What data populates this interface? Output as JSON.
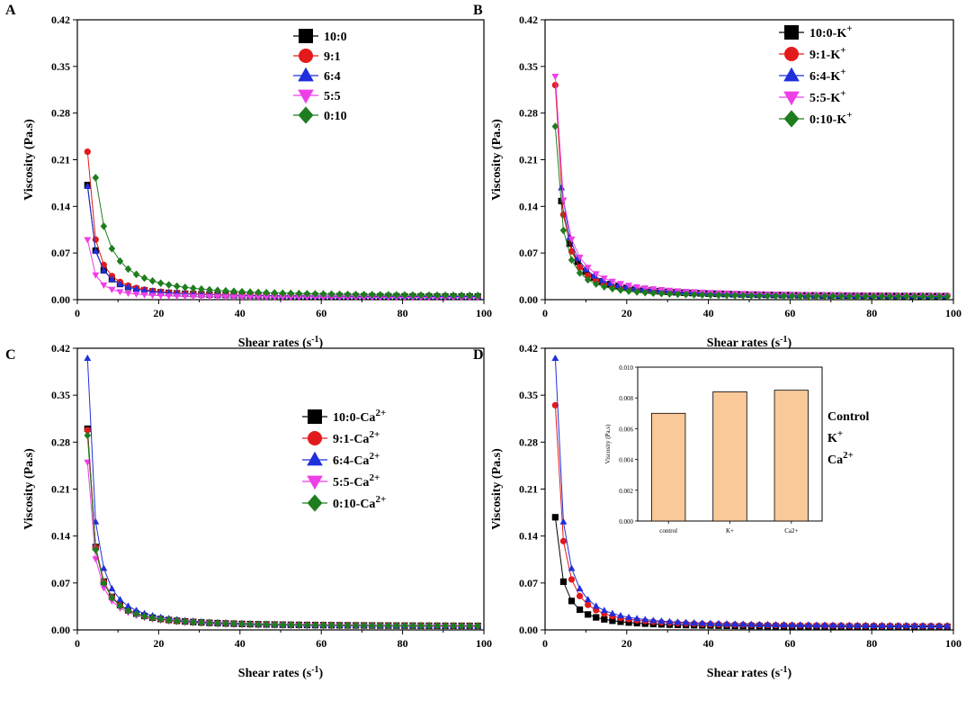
{
  "chart_data": [
    {
      "panel": "A",
      "type": "line",
      "xlabel": "Shear rates (s",
      "xlabel_sup": "-1",
      "xlabel_tail": ")",
      "ylabel": "Viscosity (Pa.s)",
      "xlim": [
        0,
        100
      ],
      "ylim": [
        0,
        0.42
      ],
      "xticks": [
        "0",
        "20",
        "40",
        "60",
        "80",
        "100"
      ],
      "yticks": [
        "0.00",
        "0.07",
        "0.14",
        "0.21",
        "0.28",
        "0.35",
        "0.42"
      ],
      "legend_position": "top-right",
      "series": [
        {
          "name": "10:0",
          "sup": "",
          "marker": "square",
          "color": "#000000",
          "start": 0.172,
          "floor": 0.004,
          "k": 0.5
        },
        {
          "name": "9:1",
          "sup": "",
          "marker": "circle",
          "color": "#e31a1c",
          "start": 0.222,
          "floor": 0.004,
          "k": 0.58
        },
        {
          "name": "6:4",
          "sup": "",
          "marker": "triangle-up",
          "color": "#1f2fdb",
          "start": 0.17,
          "floor": 0.004,
          "k": 0.5
        },
        {
          "name": "5:5",
          "sup": "",
          "marker": "triangle-down",
          "color": "#ee3ee8",
          "start": 0.09,
          "floor": 0.003,
          "k": 0.6
        },
        {
          "name": "0:10",
          "sup": "",
          "marker": "diamond",
          "color": "#1e7d1e",
          "start": 0.183,
          "floor": 0.004,
          "k": 0.42,
          "x0": 4.5
        }
      ]
    },
    {
      "panel": "B",
      "type": "line",
      "xlabel": "Shear rates (s",
      "xlabel_sup": "-1",
      "xlabel_tail": ")",
      "ylabel": "Viscosity (Pa.s)",
      "xlim": [
        0,
        100
      ],
      "ylim": [
        0,
        0.42
      ],
      "xticks": [
        "0",
        "20",
        "40",
        "60",
        "80",
        "100"
      ],
      "yticks": [
        "0.00",
        "0.07",
        "0.14",
        "0.21",
        "0.28",
        "0.35",
        "0.42"
      ],
      "legend_position": "top-right",
      "series": [
        {
          "name": "10:0-K",
          "sup": "+",
          "marker": "square",
          "color": "#000000",
          "start": 0.148,
          "floor": 0.004,
          "k": 0.45,
          "x0": 4
        },
        {
          "name": "9:1-K",
          "sup": "+",
          "marker": "circle",
          "color": "#e31a1c",
          "start": 0.322,
          "floor": 0.005,
          "k": 0.62
        },
        {
          "name": "6:4-K",
          "sup": "+",
          "marker": "triangle-up",
          "color": "#1f2fdb",
          "start": 0.168,
          "floor": 0.004,
          "k": 0.5,
          "x0": 4
        },
        {
          "name": "5:5-K",
          "sup": "+",
          "marker": "triangle-down",
          "color": "#ee3ee8",
          "start": 0.335,
          "floor": 0.004,
          "k": 0.4
        },
        {
          "name": "0:10-K",
          "sup": "+",
          "marker": "diamond",
          "color": "#1e7d1e",
          "start": 0.26,
          "floor": 0.004,
          "k": 0.6
        }
      ]
    },
    {
      "panel": "C",
      "type": "line",
      "xlabel": "Shear rates (s",
      "xlabel_sup": "-1",
      "xlabel_tail": ")",
      "ylabel": "Viscosity (Pa.s)",
      "xlim": [
        0,
        100
      ],
      "ylim": [
        0,
        0.42
      ],
      "xticks": [
        "0",
        "20",
        "40",
        "60",
        "80",
        "100"
      ],
      "yticks": [
        "0.00",
        "0.07",
        "0.14",
        "0.21",
        "0.28",
        "0.35",
        "0.42"
      ],
      "legend_position": "center-right",
      "series": [
        {
          "name": "10:0-Ca",
          "sup": "2+",
          "marker": "square",
          "color": "#000000",
          "start": 0.3,
          "floor": 0.005,
          "k": 0.55
        },
        {
          "name": "9:1-Ca",
          "sup": "2+",
          "marker": "circle",
          "color": "#e31a1c",
          "start": 0.298,
          "floor": 0.005,
          "k": 0.55
        },
        {
          "name": "6:4-Ca",
          "sup": "2+",
          "marker": "triangle-up",
          "color": "#1f2fdb",
          "start": 0.405,
          "floor": 0.005,
          "k": 0.6
        },
        {
          "name": "5:5-Ca",
          "sup": "2+",
          "marker": "triangle-down",
          "color": "#ee3ee8",
          "start": 0.25,
          "floor": 0.004,
          "k": 0.5
        },
        {
          "name": "0:10-Ca",
          "sup": "2+",
          "marker": "diamond",
          "color": "#1e7d1e",
          "start": 0.29,
          "floor": 0.005,
          "k": 0.55
        }
      ]
    },
    {
      "panel": "D",
      "type": "line",
      "xlabel": "Shear rates (s",
      "xlabel_sup": "-1",
      "xlabel_tail": ")",
      "ylabel": "Viscosity (Pa.s)",
      "xlim": [
        0,
        100
      ],
      "ylim": [
        0,
        0.42
      ],
      "xticks": [
        "0",
        "20",
        "40",
        "60",
        "80",
        "100"
      ],
      "yticks": [
        "0.00",
        "0.07",
        "0.14",
        "0.21",
        "0.28",
        "0.35",
        "0.42"
      ],
      "legend_position": "right",
      "series": [
        {
          "name": "Control",
          "sup": "",
          "marker": "square",
          "color": "#000000",
          "start": 0.168,
          "floor": 0.004,
          "k": 0.5
        },
        {
          "name": "K",
          "sup": "+",
          "marker": "circle",
          "color": "#e31a1c",
          "start": 0.335,
          "floor": 0.005,
          "k": 0.62
        },
        {
          "name": "Ca",
          "sup": "2+",
          "marker": "triangle-up",
          "color": "#1f2fdb",
          "start": 0.405,
          "floor": 0.005,
          "k": 0.6
        }
      ],
      "inset": {
        "type": "bar",
        "categories": [
          "control",
          "K+",
          "Ca2+"
        ],
        "values": [
          0.007,
          0.0084,
          0.0085
        ],
        "ylabel": "Viscosity (Pa.s)",
        "ylim": [
          0,
          0.01
        ],
        "yticks": [
          "0.000",
          "0.002",
          "0.004",
          "0.006",
          "0.008",
          "0.010"
        ],
        "bar_color": "#f9c99a"
      }
    }
  ]
}
